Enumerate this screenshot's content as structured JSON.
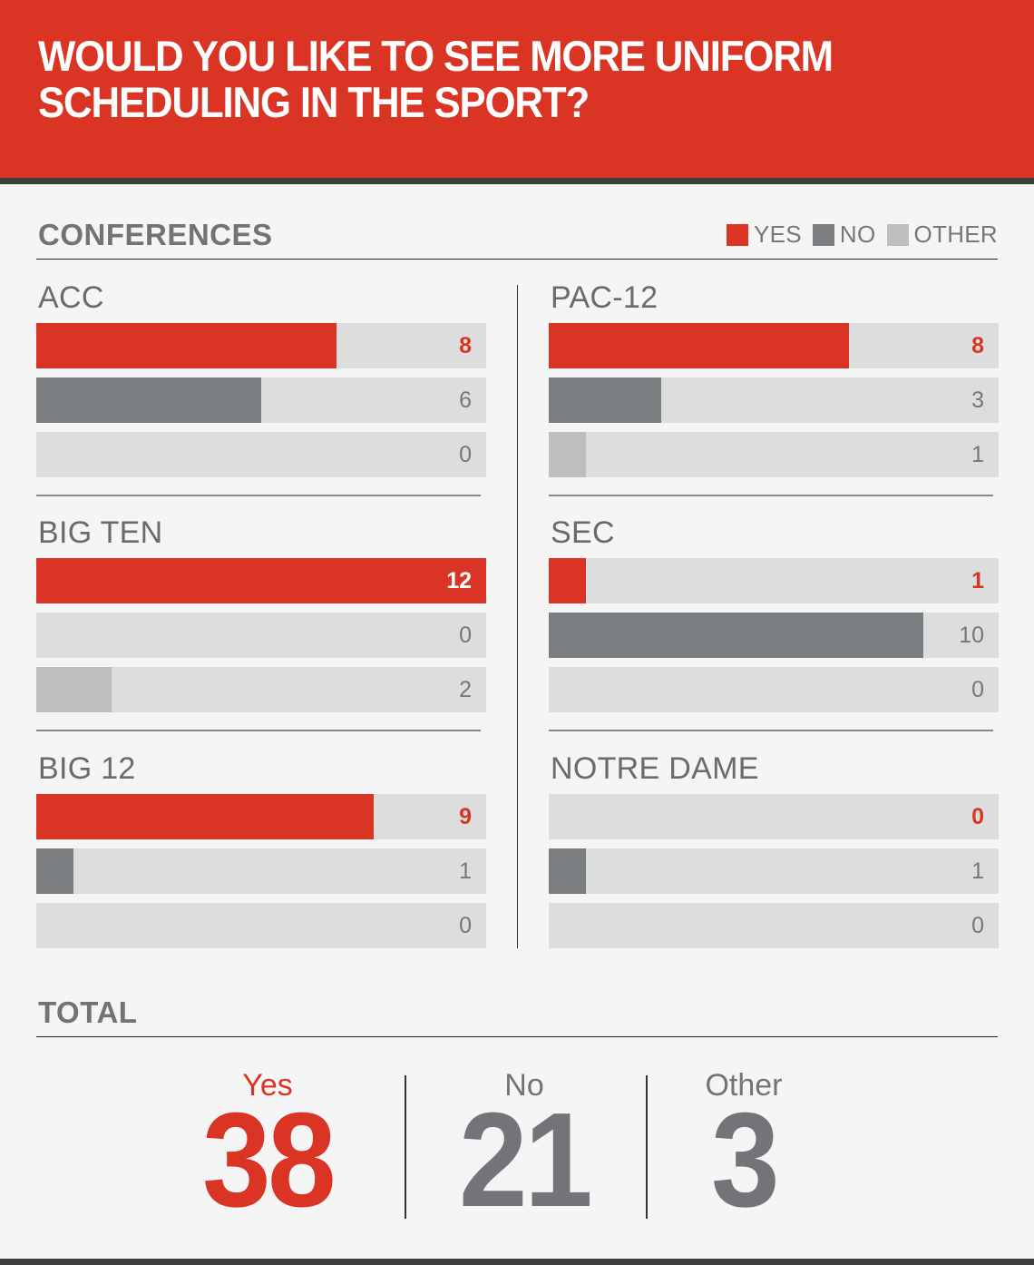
{
  "header": {
    "title": "WOULD YOU LIKE TO SEE MORE UNIFORM SCHEDULING IN THE SPORT?"
  },
  "conferences_section": {
    "title": "CONFERENCES",
    "legend": [
      {
        "label": "YES",
        "color": "#da3524"
      },
      {
        "label": "NO",
        "color": "#7b7e80"
      },
      {
        "label": "OTHER",
        "color": "#bdbebe"
      }
    ]
  },
  "conferences": [
    {
      "name": "ACC",
      "yes": "8",
      "no": "6",
      "other": "0"
    },
    {
      "name": "PAC-12",
      "yes": "8",
      "no": "3",
      "other": "1"
    },
    {
      "name": "BIG TEN",
      "yes": "12",
      "no": "0",
      "other": "2"
    },
    {
      "name": "SEC",
      "yes": "1",
      "no": "10",
      "other": "0"
    },
    {
      "name": "BIG 12",
      "yes": "9",
      "no": "1",
      "other": "0"
    },
    {
      "name": "NOTRE DAME",
      "yes": "0",
      "no": "1",
      "other": "0"
    }
  ],
  "total_section": {
    "title": "TOTAL",
    "items": [
      {
        "label": "Yes",
        "value": "38",
        "color": "#da3524"
      },
      {
        "label": "No",
        "value": "21",
        "color": "#737479"
      },
      {
        "label": "Other",
        "value": "3",
        "color": "#737479"
      }
    ]
  },
  "colors": {
    "yes": "#da3524",
    "no": "#7b7e80",
    "other": "#bdbebe",
    "track": "#dcdedd",
    "background": "#f5f5f5"
  },
  "chart_data": {
    "type": "bar",
    "orientation": "horizontal",
    "title": "WOULD YOU LIKE TO SEE MORE UNIFORM SCHEDULING IN THE SPORT?",
    "subtitle": "CONFERENCES",
    "categories": [
      "ACC",
      "PAC-12",
      "BIG TEN",
      "SEC",
      "BIG 12",
      "NOTRE DAME"
    ],
    "series": [
      {
        "name": "YES",
        "color": "#da3524",
        "values": [
          8,
          8,
          12,
          1,
          9,
          0
        ]
      },
      {
        "name": "NO",
        "color": "#7b7e80",
        "values": [
          6,
          3,
          0,
          10,
          1,
          1
        ]
      },
      {
        "name": "OTHER",
        "color": "#bdbebe",
        "values": [
          0,
          1,
          2,
          0,
          0,
          0
        ]
      }
    ],
    "xlim": [
      0,
      12
    ],
    "grid": false,
    "legend_position": "top-right",
    "totals": {
      "Yes": 38,
      "No": 21,
      "Other": 3
    }
  }
}
